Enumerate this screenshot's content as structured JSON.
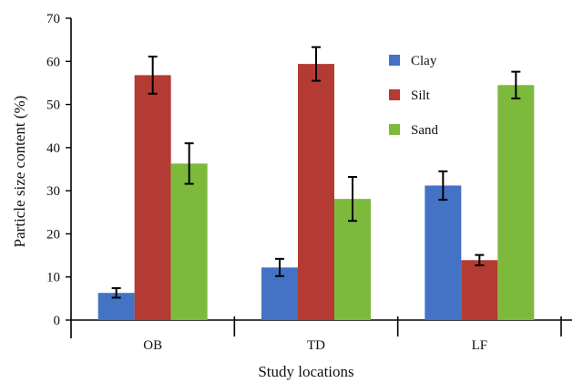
{
  "chart_data": {
    "type": "bar",
    "xlabel": "Study locations",
    "ylabel": "Particle size content (%)",
    "ylim": [
      0,
      70
    ],
    "yticks": [
      0,
      10,
      20,
      30,
      40,
      50,
      60,
      70
    ],
    "categories": [
      "OB",
      "TD",
      "LF"
    ],
    "series": [
      {
        "name": "Clay",
        "color": "#4472c4",
        "values": [
          6.3,
          12.2,
          31.2
        ],
        "errors": [
          1.1,
          2.0,
          3.3
        ]
      },
      {
        "name": "Silt",
        "color": "#b33b33",
        "values": [
          56.8,
          59.4,
          13.9
        ],
        "errors": [
          4.3,
          3.9,
          1.2
        ]
      },
      {
        "name": "Sand",
        "color": "#7dba3c",
        "values": [
          36.3,
          28.1,
          54.5
        ],
        "errors": [
          4.7,
          5.1,
          3.1
        ]
      }
    ],
    "legend": {
      "position": "top-right"
    },
    "grid": false
  }
}
